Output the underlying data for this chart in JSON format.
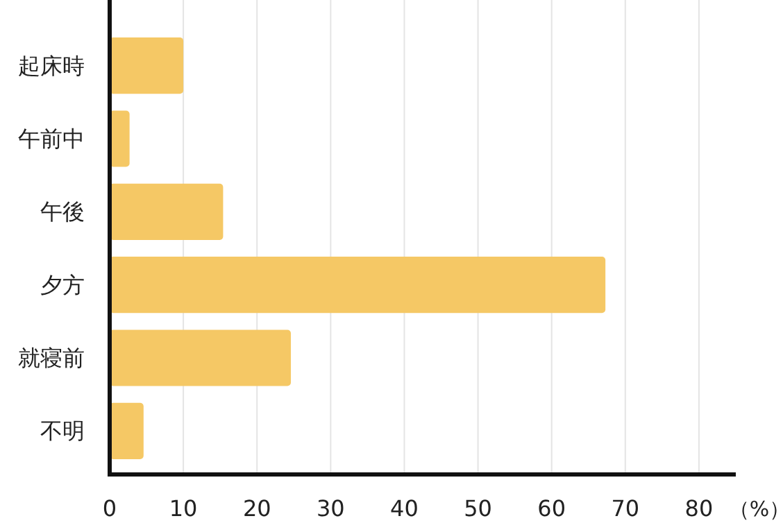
{
  "chart_data": {
    "type": "bar",
    "orientation": "horizontal",
    "xlabel": "（%）",
    "categories": [
      "起床時",
      "午前中",
      "午後",
      "夕方",
      "就寝前",
      "不明"
    ],
    "values": [
      10,
      2.7,
      15.4,
      67.3,
      24.6,
      4.6
    ],
    "color": "#f5c865",
    "xlim": [
      0,
      85
    ],
    "xticks": [
      0,
      10,
      20,
      30,
      40,
      50,
      60,
      70,
      80
    ],
    "grid": "x"
  }
}
